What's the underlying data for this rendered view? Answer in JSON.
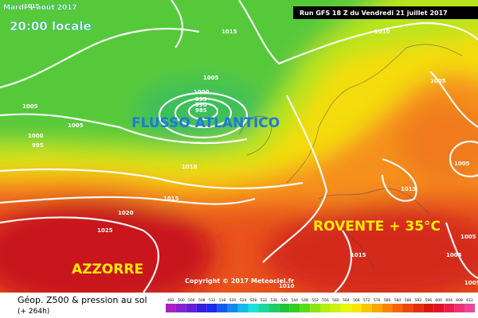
{
  "header": {
    "date": "Mardi 1 août 2017",
    "time": "20:00 locale",
    "run": "Run GFS 18 Z du Vendredi 21 juillet 2017"
  },
  "annotations": {
    "atlantic": "FLUSSO ATLANTICO",
    "hot": "ROVENTE + 35°C",
    "azores": "AZZORRE"
  },
  "copyright": "Copyright © 2017 Meteociel.fr",
  "isobars": [
    "1015",
    "1015",
    "1010",
    "1005",
    "1000",
    "995",
    "990",
    "985",
    "1005",
    "1005",
    "1000",
    "995",
    "1010",
    "1015",
    "1020",
    "1025",
    "1005",
    "1005",
    "1015",
    "1015",
    "1005",
    "1005",
    "1010",
    "1005"
  ],
  "footer": {
    "title": "Géop. Z500 & pression au sol",
    "lead": "(+ 264h)",
    "scale": [
      "492",
      "500",
      "504",
      "508",
      "512",
      "516",
      "520",
      "524",
      "528",
      "532",
      "536",
      "540",
      "544",
      "548",
      "552",
      "556",
      "560",
      "564",
      "568",
      "572",
      "576",
      "580",
      "584",
      "588",
      "592",
      "596",
      "600",
      "604",
      "608",
      "612"
    ]
  }
}
